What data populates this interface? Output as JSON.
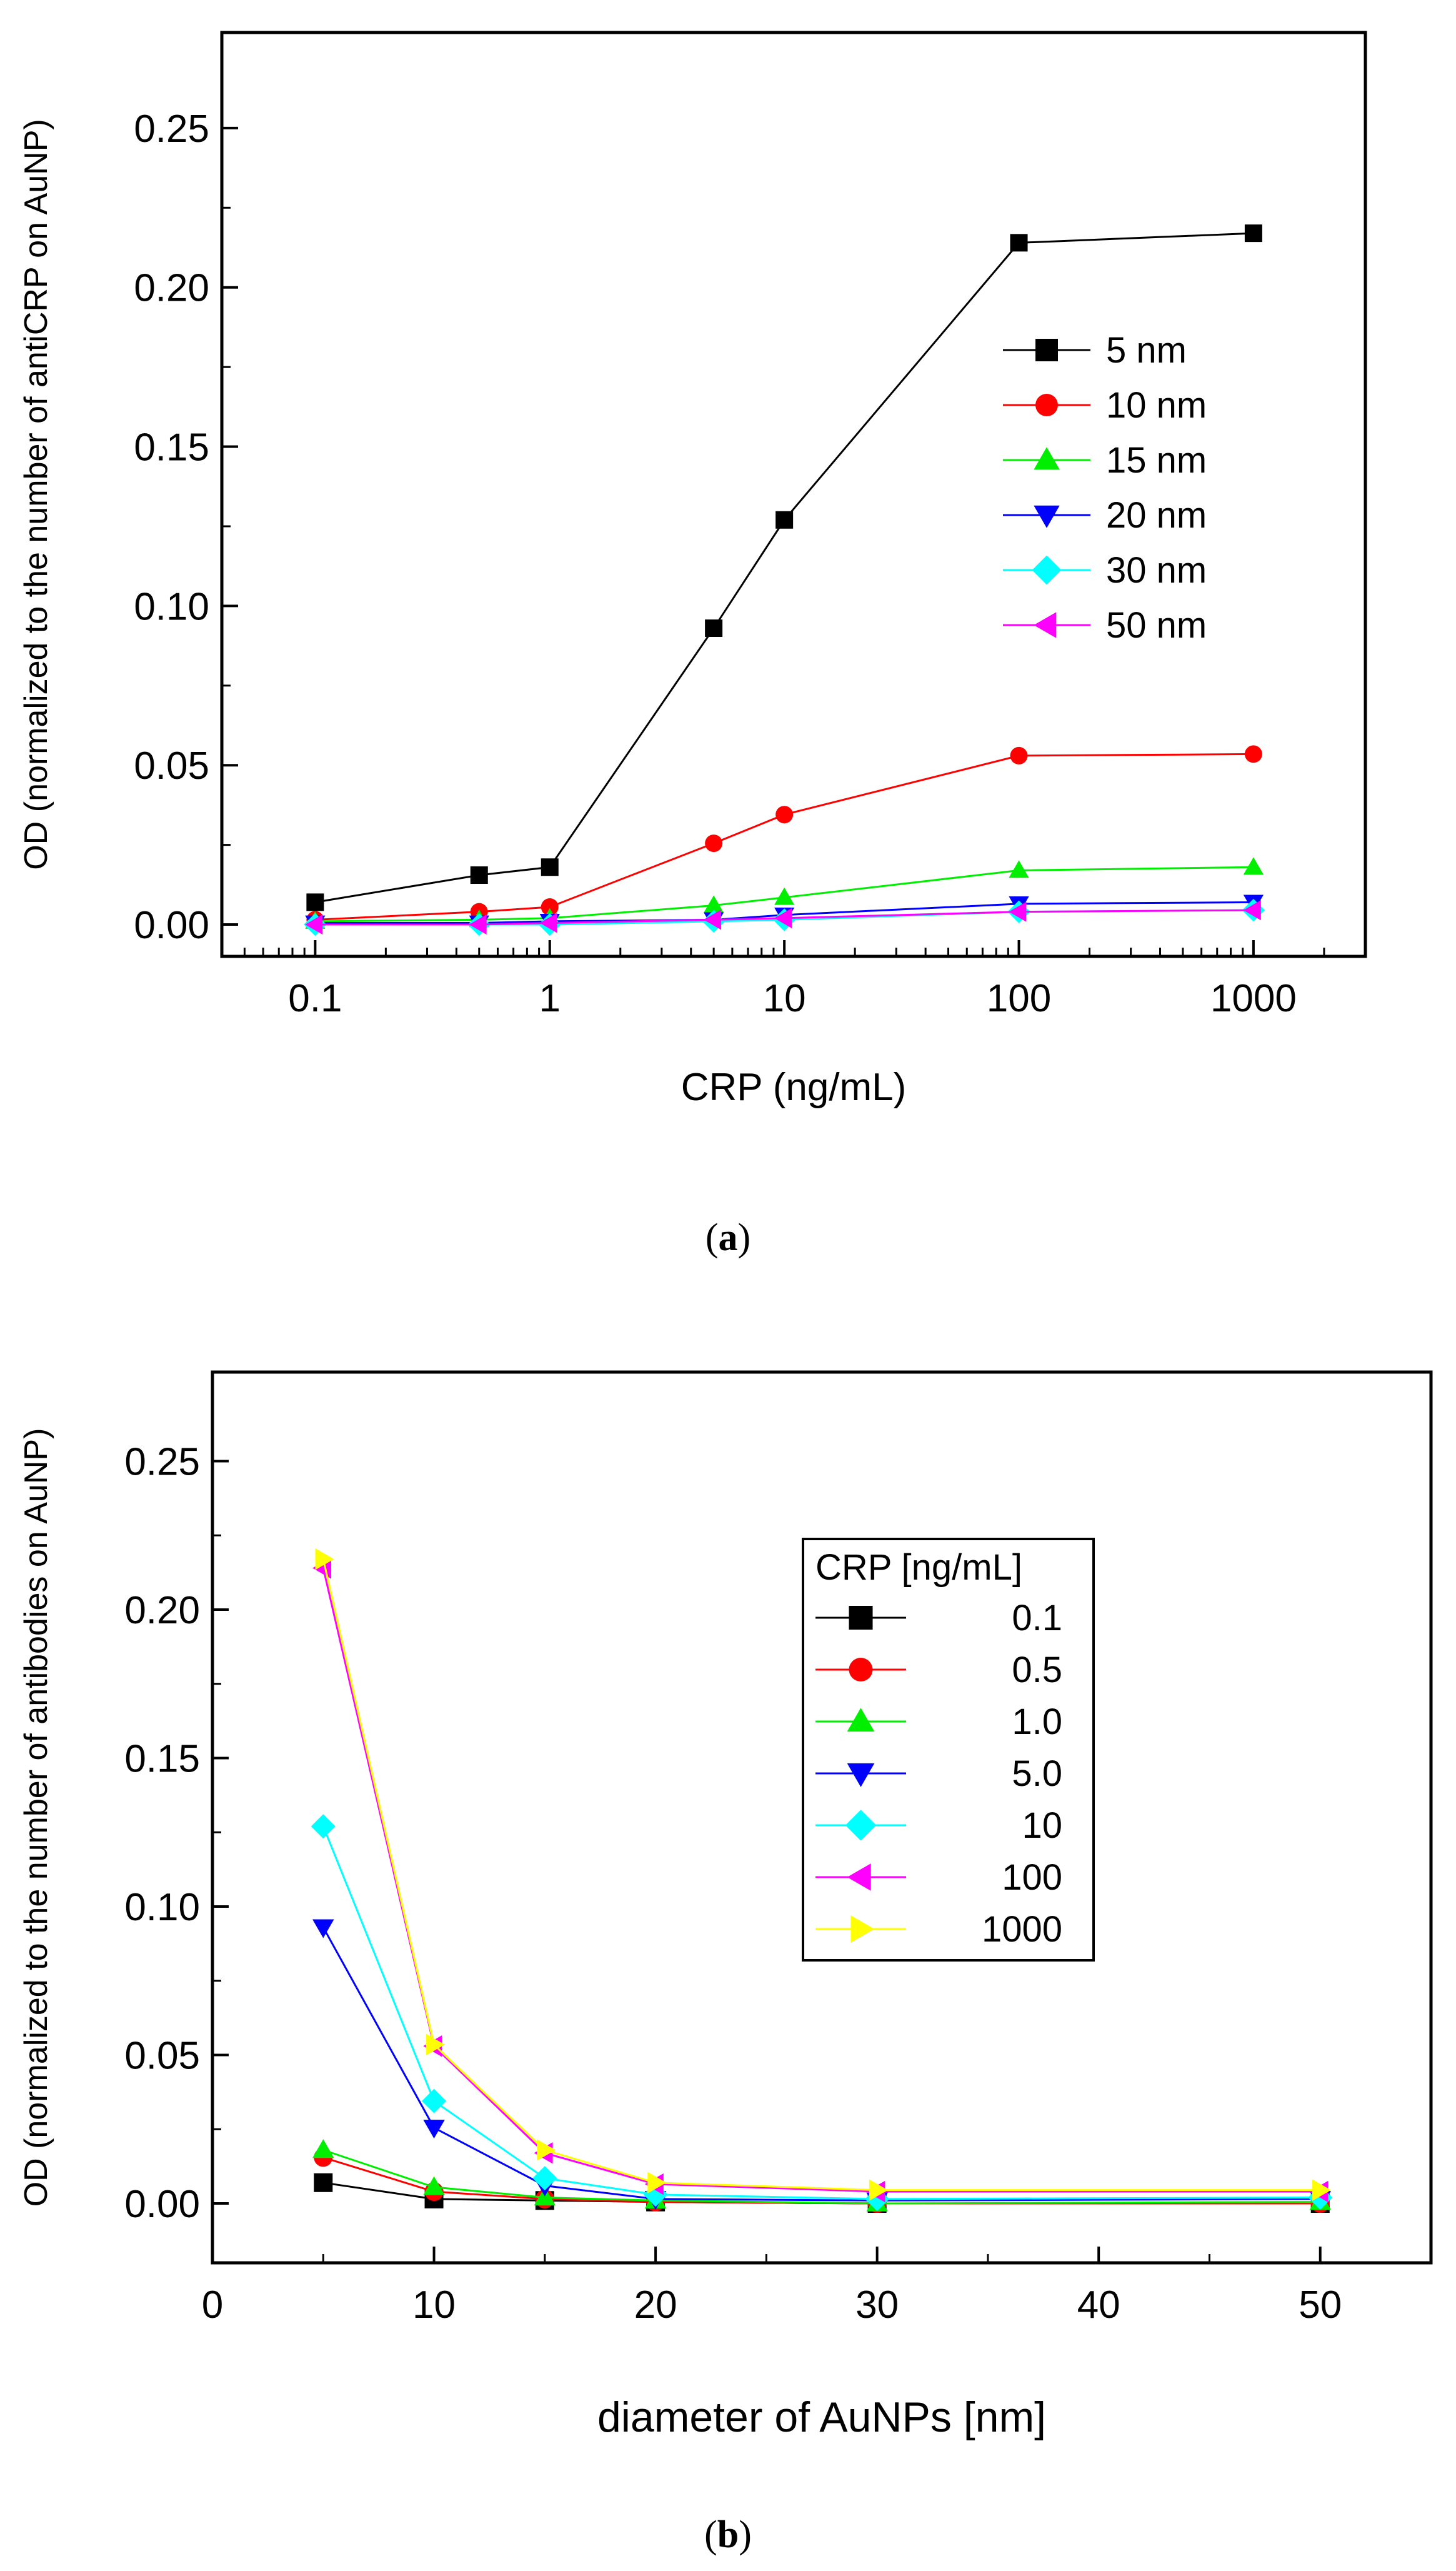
{
  "chart_data": [
    {
      "type": "line",
      "panel": "a",
      "caption_open": "(",
      "caption_letter": "a",
      "caption_close": ")",
      "xscale": "log",
      "xlabel": "CRP (ng/mL)",
      "ylabel": "OD (normalized to the number of antiCRP on AuNP)",
      "xlim": [
        0.04,
        3000
      ],
      "ylim": [
        -0.01,
        0.28
      ],
      "xticks": [
        0.1,
        1,
        10,
        100,
        1000
      ],
      "xtick_labels": [
        "0.1",
        "1",
        "10",
        "100",
        "1000"
      ],
      "yticks": [
        0.0,
        0.05,
        0.1,
        0.15,
        0.2,
        0.25
      ],
      "ytick_labels": [
        "0.00",
        "0.05",
        "0.10",
        "0.15",
        "0.20",
        "0.25"
      ],
      "legend_title": "",
      "legend_position": "right-middle",
      "x": [
        0.1,
        0.5,
        1,
        5,
        10,
        100,
        1000
      ],
      "series": [
        {
          "name": "5 nm",
          "color": "#000000",
          "marker": "square",
          "values": [
            0.007,
            0.0155,
            0.018,
            0.093,
            0.127,
            0.214,
            0.217
          ]
        },
        {
          "name": "10 nm",
          "color": "#ff0000",
          "marker": "circle",
          "values": [
            0.0015,
            0.004,
            0.0055,
            0.0255,
            0.0345,
            0.053,
            0.0535
          ]
        },
        {
          "name": "15 nm",
          "color": "#00ee00",
          "marker": "triangle-up",
          "values": [
            0.001,
            0.0015,
            0.002,
            0.006,
            0.0085,
            0.017,
            0.018
          ]
        },
        {
          "name": "20 nm",
          "color": "#0000ff",
          "marker": "triangle-down",
          "values": [
            0.0005,
            0.0005,
            0.001,
            0.0015,
            0.003,
            0.0065,
            0.007
          ]
        },
        {
          "name": "30 nm",
          "color": "#00ffff",
          "marker": "diamond",
          "values": [
            0.0,
            0.0,
            0.0,
            0.001,
            0.0015,
            0.004,
            0.0045
          ]
        },
        {
          "name": "50 nm",
          "color": "#ff00ff",
          "marker": "triangle-left",
          "values": [
            0.0,
            0.0,
            0.0005,
            0.0015,
            0.002,
            0.004,
            0.0045
          ]
        }
      ]
    },
    {
      "type": "line",
      "panel": "b",
      "caption_open": "(",
      "caption_letter": "b",
      "caption_close": ")",
      "xscale": "linear",
      "xlabel": "diameter of AuNPs [nm]",
      "ylabel": "OD (normalized to the number of antibodies on AuNP)",
      "xlim": [
        0,
        55
      ],
      "ylim": [
        -0.02,
        0.28
      ],
      "xticks": [
        0,
        10,
        20,
        30,
        40,
        50
      ],
      "xtick_labels": [
        "0",
        "10",
        "20",
        "30",
        "40",
        "50"
      ],
      "yticks": [
        0.0,
        0.05,
        0.1,
        0.15,
        0.2,
        0.25
      ],
      "ytick_labels": [
        "0.00",
        "0.05",
        "0.10",
        "0.15",
        "0.20",
        "0.25"
      ],
      "legend_title": "CRP [ng/mL]",
      "legend_position": "center",
      "x": [
        5,
        10,
        15,
        20,
        30,
        50
      ],
      "series": [
        {
          "name": "0.1",
          "color": "#000000",
          "marker": "square",
          "values": [
            0.007,
            0.0015,
            0.001,
            0.0005,
            0.0,
            0.0
          ]
        },
        {
          "name": "0.5",
          "color": "#ff0000",
          "marker": "circle",
          "values": [
            0.0155,
            0.004,
            0.0015,
            0.0005,
            0.0,
            0.0
          ]
        },
        {
          "name": "1.0",
          "color": "#00ee00",
          "marker": "triangle-up",
          "values": [
            0.018,
            0.0055,
            0.002,
            0.001,
            0.0,
            0.0005
          ]
        },
        {
          "name": "5.0",
          "color": "#0000ff",
          "marker": "triangle-down",
          "values": [
            0.093,
            0.0255,
            0.006,
            0.0015,
            0.001,
            0.0015
          ]
        },
        {
          "name": "10",
          "color": "#00ffff",
          "marker": "diamond",
          "values": [
            0.127,
            0.0345,
            0.0085,
            0.003,
            0.0015,
            0.002
          ]
        },
        {
          "name": "100",
          "color": "#ff00ff",
          "marker": "triangle-left",
          "values": [
            0.214,
            0.053,
            0.017,
            0.0065,
            0.004,
            0.004
          ]
        },
        {
          "name": "1000",
          "color": "#ffff00",
          "marker": "triangle-right",
          "values": [
            0.217,
            0.0535,
            0.018,
            0.007,
            0.0045,
            0.0045
          ]
        }
      ]
    }
  ]
}
